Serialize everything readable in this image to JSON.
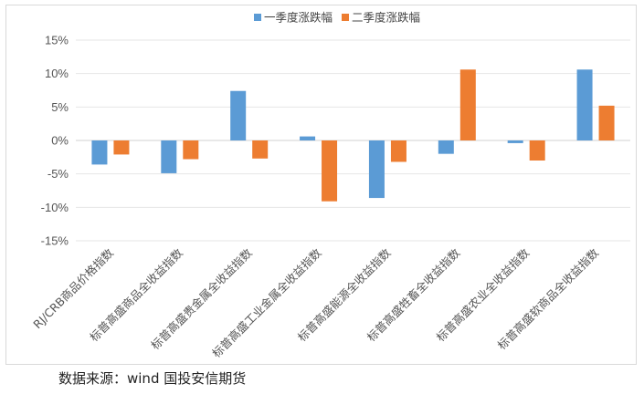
{
  "chart_data": {
    "type": "bar",
    "categories": [
      "RJ/CRB商品价格指数",
      "标普高盛商品全收益指数",
      "标普高盛贵金属全收益指数",
      "标普高盛工业金属全收益指数",
      "标普高盛能源全收益指数",
      "标普高盛牲畜全收益指数",
      "标普高盛农业全收益指数",
      "标普高盛软商品全收益指数"
    ],
    "series": [
      {
        "name": "一季度涨跌幅",
        "color": "#5B9BD5",
        "values": [
          -3.6,
          -4.9,
          7.4,
          0.6,
          -8.6,
          -2.0,
          -0.4,
          10.6
        ]
      },
      {
        "name": "二季度涨跌幅",
        "color": "#ED7D31",
        "values": [
          -2.1,
          -2.8,
          -2.7,
          -9.1,
          -3.2,
          10.6,
          -3.0,
          5.2
        ]
      }
    ],
    "y_ticks": [
      "15%",
      "10%",
      "5%",
      "0%",
      "-5%",
      "-10%",
      "-15%"
    ],
    "ylim": [
      -15,
      15
    ],
    "unit": "%",
    "grid": true,
    "legend_position": "top"
  },
  "source_text": "数据来源：wind  国投安信期货"
}
